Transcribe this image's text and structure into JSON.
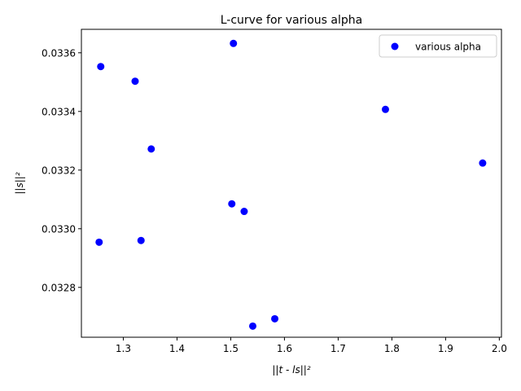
{
  "chart_data": {
    "type": "scatter",
    "title": "L-curve for various alpha",
    "xlabel": "||t - ls||²",
    "ylabel": "||s||²",
    "xlim": [
      1.222,
      2.004
    ],
    "ylim": [
      0.03263,
      0.03368
    ],
    "xticks": [
      1.3,
      1.4,
      1.5,
      1.6,
      1.7,
      1.8,
      1.9,
      2.0
    ],
    "xtick_labels": [
      "1.3",
      "1.4",
      "1.5",
      "1.6",
      "1.7",
      "1.8",
      "1.9",
      "2.0"
    ],
    "yticks": [
      0.0328,
      0.033,
      0.0332,
      0.0334,
      0.0336
    ],
    "ytick_labels": [
      "0.0328",
      "0.0330",
      "0.0332",
      "0.0334",
      "0.0336"
    ],
    "grid": false,
    "legend_position": "top-right",
    "series": [
      {
        "name": "various alpha",
        "color": "#0000ff",
        "marker": "circle",
        "points": [
          {
            "x": 1.258,
            "y": 0.033553
          },
          {
            "x": 1.322,
            "y": 0.033503
          },
          {
            "x": 1.505,
            "y": 0.033632
          },
          {
            "x": 1.788,
            "y": 0.033407
          },
          {
            "x": 1.352,
            "y": 0.033272
          },
          {
            "x": 1.969,
            "y": 0.033224
          },
          {
            "x": 1.502,
            "y": 0.033085
          },
          {
            "x": 1.525,
            "y": 0.033059
          },
          {
            "x": 1.255,
            "y": 0.032954
          },
          {
            "x": 1.333,
            "y": 0.03296
          },
          {
            "x": 1.582,
            "y": 0.032693
          },
          {
            "x": 1.541,
            "y": 0.032668
          }
        ]
      }
    ]
  }
}
